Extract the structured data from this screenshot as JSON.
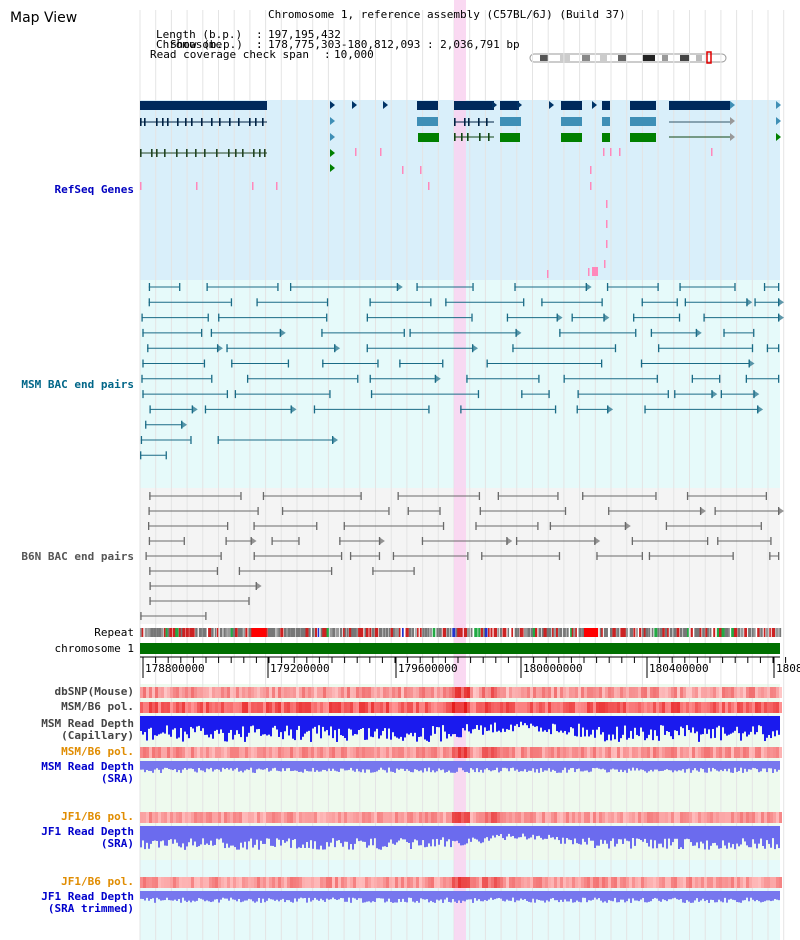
{
  "app": {
    "title": "Map View"
  },
  "info": {
    "chromosome_key": "Chromosome",
    "chromosome_value": "Chromosome 1, reference assembly (C57BL/6J) (Build 37)",
    "length_key": "Length (b.p.)",
    "length_value": "197,195,432",
    "show_key": "Show (b.p.)",
    "show_value": "178,775,303-180,812,093 : 2,036,791 bp",
    "span_key": "Read coverage check span",
    "span_value": "10,000"
  },
  "tracks": {
    "refseq": "RefSeq Genes",
    "msm_bac": "MSM BAC end pairs",
    "b6n_bac": "B6N BAC end pairs",
    "repeat": "Repeat",
    "chromosome": "chromosome 1",
    "dbsnp": "dbSNP(Mouse)",
    "msm_b6_pol_1": "MSM/B6 pol.",
    "msm_depth_cap_1": "MSM Read Depth",
    "msm_depth_cap_2": "(Capillary)",
    "msm_b6_pol_2": "MSM/B6 pol.",
    "msm_depth_sra_1": "MSM Read Depth",
    "msm_depth_sra_2": "(SRA)",
    "jf1_b6_pol_1": "JF1/B6 pol.",
    "jf1_depth_sra_1": "JF1 Read Depth",
    "jf1_depth_sra_2": "(SRA)",
    "jf1_b6_pol_2": "JF1/B6 pol.",
    "jf1_depth_trim_1": "JF1 Read Depth",
    "jf1_depth_trim_2": "(SRA trimmed)"
  },
  "ruler": {
    "ticks": [
      "178800000",
      "179200000",
      "179600000",
      "180000000",
      "180400000",
      "1808"
    ]
  },
  "colors": {
    "refseq_label": "#0000c0",
    "msm_bac_label": "#006688",
    "b6n_bac_label": "#555555",
    "orange_label": "#e08c00",
    "blue_label": "#0000cc",
    "refseq_bg": "#d9effa",
    "msm_bg": "#e6fafa",
    "b6n_bg": "#f4f4f4",
    "highlight": "#f9d2f0",
    "chromosome_bar": "#007000",
    "gene_dark": "#002a5c",
    "gene_mid": "#3f8fb6",
    "gene_green": "#008000"
  }
}
